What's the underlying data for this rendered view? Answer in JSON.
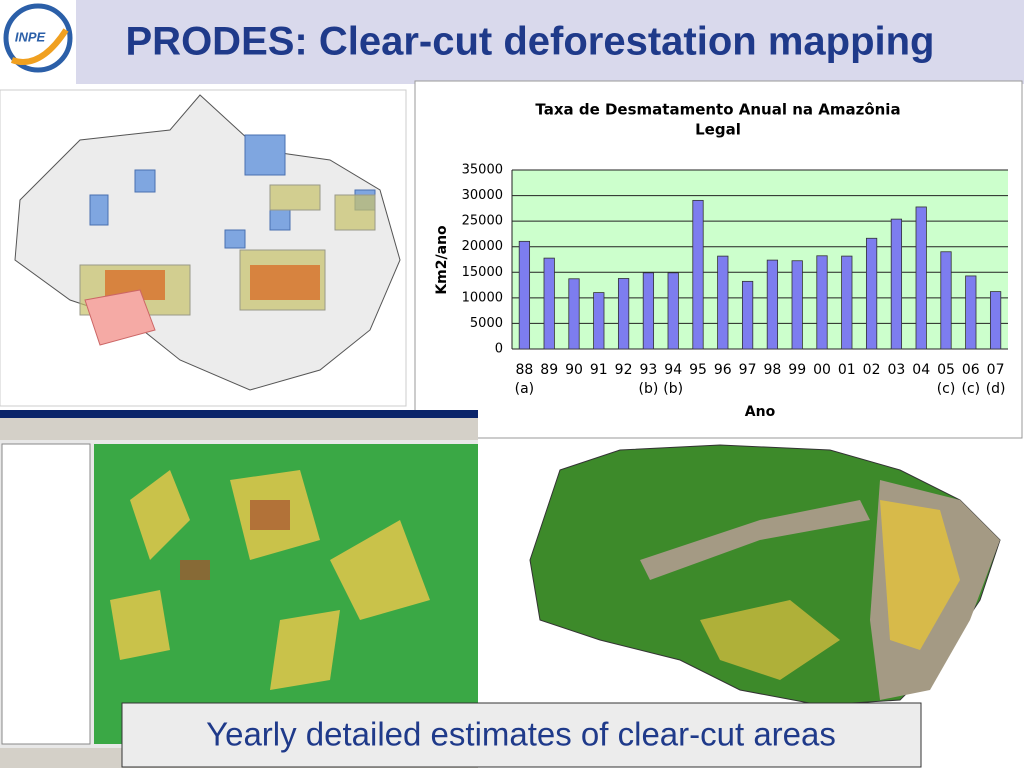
{
  "slide": {
    "title": "PRODES: Clear-cut deforestation mapping",
    "logo": "INPE",
    "caption": "Yearly detailed estimates of clear-cut areas"
  },
  "chart_data": {
    "type": "bar",
    "title": [
      "Taxa de Desmatamento Anual na Amazônia",
      "Legal"
    ],
    "xlabel": "Ano",
    "ylabel": "Km2/ano",
    "categories": [
      "88",
      "89",
      "90",
      "91",
      "92",
      "93",
      "94",
      "95",
      "96",
      "97",
      "98",
      "99",
      "00",
      "01",
      "02",
      "03",
      "04",
      "05",
      "06",
      "07"
    ],
    "category_notes": [
      "(a)",
      null,
      null,
      null,
      null,
      "(b)",
      "(b)",
      null,
      null,
      null,
      null,
      null,
      null,
      null,
      null,
      null,
      null,
      "(c)",
      "(c)",
      "(d)"
    ],
    "values": [
      21050,
      17770,
      13730,
      11030,
      13786,
      14896,
      14896,
      29059,
      18161,
      13227,
      17383,
      17259,
      18226,
      18165,
      21651,
      25396,
      27772,
      19014,
      14286,
      11224
    ],
    "color": "#7d7def",
    "plot_background": "#ccffcc",
    "ylim": [
      0,
      35000
    ],
    "yticks": [
      0,
      5000,
      10000,
      15000,
      20000,
      25000,
      30000,
      35000
    ],
    "grid": true
  }
}
